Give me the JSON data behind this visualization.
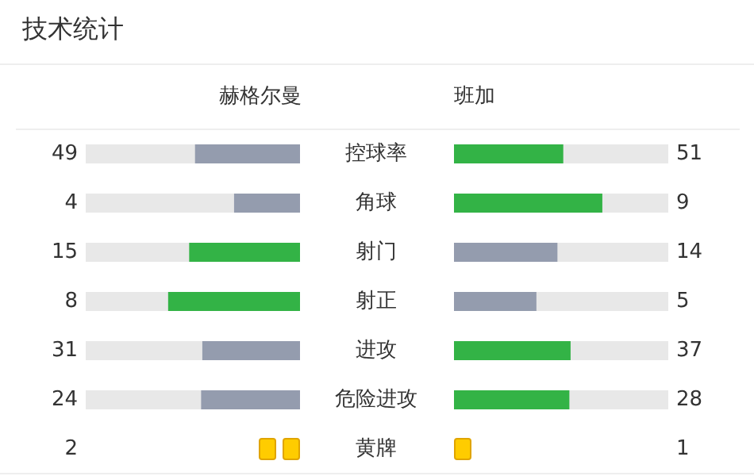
{
  "chart_data": [
    {
      "type": "other",
      "title": "技术统计",
      "categories": [
        "控球率",
        "角球",
        "射门",
        "射正",
        "进攻",
        "危险进攻"
      ],
      "data_labels": true,
      "series": [
        {
          "name": "赫格尔曼",
          "values": [
            49,
            4,
            15,
            8,
            31,
            24
          ],
          "colors": [
            "#949cae",
            "#949cae",
            "#33b346",
            "#33b346",
            "#949cae",
            "#949cae"
          ]
        },
        {
          "name": "班加",
          "values": [
            51,
            9,
            14,
            5,
            37,
            28
          ],
          "colors": [
            "#33b346",
            "#33b346",
            "#949cae",
            "#949cae",
            "#33b346",
            "#33b346"
          ]
        }
      ]
    },
    {
      "type": "other",
      "categories": [
        "黄牌"
      ],
      "data_labels": true,
      "series": [
        {
          "values": [
            2
          ],
          "colors": [
            "#ffcc00"
          ]
        },
        {
          "values": [
            1
          ],
          "colors": [
            "#ffcc00"
          ]
        }
      ]
    }
  ]
}
